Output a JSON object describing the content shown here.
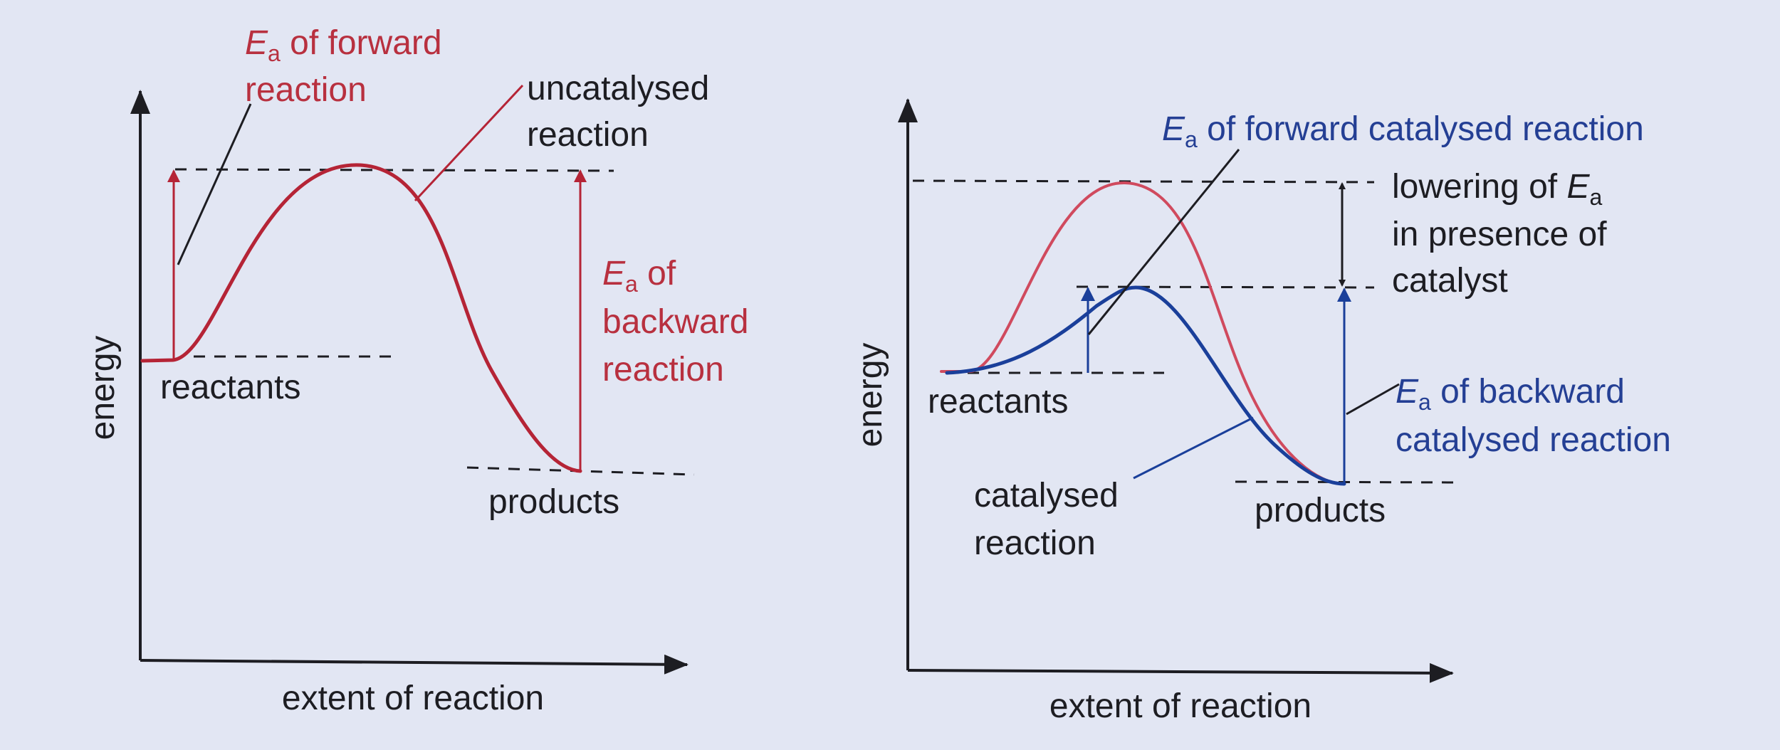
{
  "colors": {
    "background": "#e2e6f3",
    "ink": "#1d1d22",
    "uncatalysed": "#b52436",
    "uncatalysed_light": "#d04a5e",
    "catalysed": "#1a3f9a",
    "label_red": "#b8303f",
    "label_blue": "#243f94"
  },
  "left_diagram": {
    "y_axis_label": "energy",
    "x_axis_label": "extent of reaction",
    "reactants_label": "reactants",
    "products_label": "products",
    "ea_forward_line1_sym": "E",
    "ea_forward_line1_sub": "a",
    "ea_forward_line1_rest": " of forward",
    "ea_forward_line2": "reaction",
    "uncatalysed_line1": "uncatalysed",
    "uncatalysed_line2": "reaction",
    "ea_backward_line1_sym": "E",
    "ea_backward_line1_sub": "a",
    "ea_backward_line1_rest": " of",
    "ea_backward_line2": "backward",
    "ea_backward_line3": "reaction"
  },
  "right_diagram": {
    "y_axis_label": "energy",
    "x_axis_label": "extent of reaction",
    "reactants_label": "reactants",
    "products_label": "products",
    "ea_forward_cat_sym": "E",
    "ea_forward_cat_sub": "a",
    "ea_forward_cat_rest": " of forward catalysed reaction",
    "lowering_line1_text": "lowering of ",
    "lowering_line1_sym": "E",
    "lowering_line1_sub": "a",
    "lowering_line2": "in presence of",
    "lowering_line3": "catalyst",
    "ea_backward_cat_sym": "E",
    "ea_backward_cat_sub": "a",
    "ea_backward_cat_rest": " of backward",
    "ea_backward_cat_line2": "catalysed reaction",
    "catalysed_line1": "catalysed",
    "catalysed_line2": "reaction"
  }
}
